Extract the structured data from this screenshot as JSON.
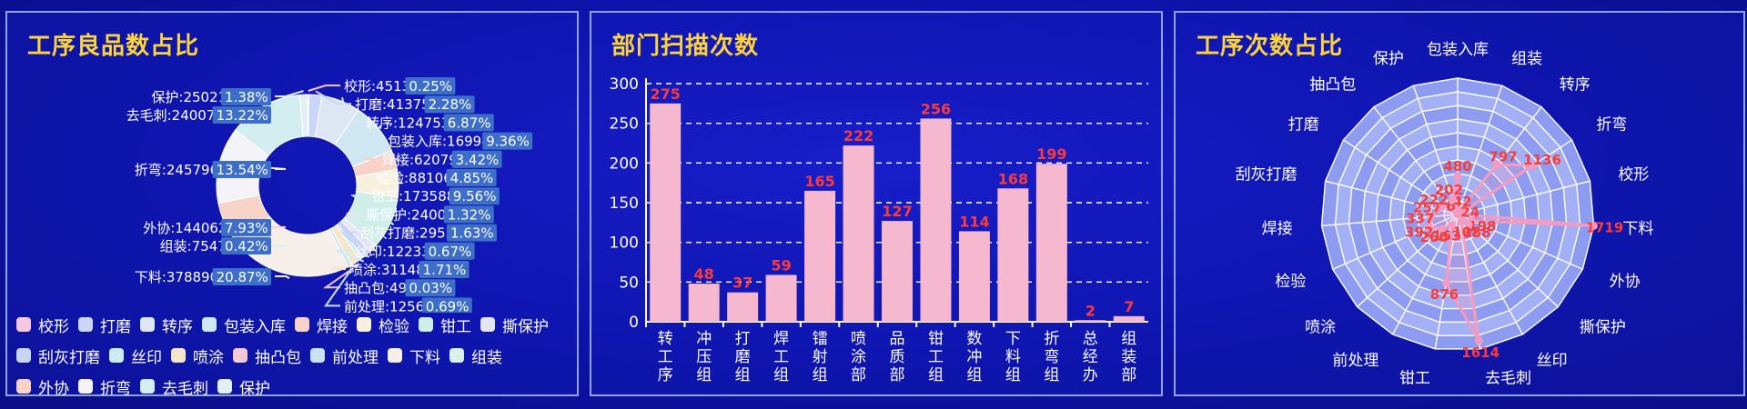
{
  "panels": {
    "good_ratio_title": "工序良品数占比",
    "dept_scan_title": "部门扫描次数",
    "process_count_title": "工序次数占比"
  },
  "chart_data": [
    {
      "type": "pie",
      "title": "工序良品数占比",
      "slices": [
        {
          "name": "校形",
          "value": 4513,
          "percent": "0.25%",
          "color": "#f7c6df"
        },
        {
          "name": "打磨",
          "value": 41375,
          "percent": "2.28%",
          "color": "#c9d6f7"
        },
        {
          "name": "转序",
          "value": 124753,
          "percent": "6.87%",
          "color": "#dfe6f3"
        },
        {
          "name": "包装入库",
          "value": 169943,
          "percent": "9.36%",
          "color": "#cfe7f3"
        },
        {
          "name": "焊接",
          "value": 62079,
          "percent": "3.42%",
          "color": "#f8d2c8"
        },
        {
          "name": "检验",
          "value": 88106,
          "percent": "4.85%",
          "color": "#f7f0dc"
        },
        {
          "name": "钳工",
          "value": 173588,
          "percent": "9.56%",
          "color": "#cfeee7"
        },
        {
          "name": "撕保护",
          "value": 24001,
          "percent": "1.32%",
          "color": "#e3e6f2"
        },
        {
          "name": "刮灰打磨",
          "value": 29552,
          "percent": "1.63%",
          "color": "#c7d4f4"
        },
        {
          "name": "丝印",
          "value": 12233,
          "percent": "0.67%",
          "color": "#cdebf1"
        },
        {
          "name": "喷涂",
          "value": 31148,
          "percent": "1.71%",
          "color": "#f6e5c8"
        },
        {
          "name": "抽凸包",
          "value": 497,
          "percent": "0.03%",
          "color": "#f4c9d6"
        },
        {
          "name": "前处理",
          "value": 12568,
          "percent": "0.69%",
          "color": "#cbe1f5"
        },
        {
          "name": "下料",
          "value": 378890,
          "percent": "20.87%",
          "color": "#f5eee9"
        },
        {
          "name": "组装",
          "value": 7547,
          "percent": "0.42%",
          "color": "#d8f1ec"
        },
        {
          "name": "外协",
          "value": 144062,
          "percent": "7.93%",
          "color": "#f8d3c8"
        },
        {
          "name": "折弯",
          "value": 245796,
          "percent": "13.54%",
          "color": "#f4f4f8"
        },
        {
          "name": "去毛刺",
          "value": 240070,
          "percent": "13.22%",
          "color": "#d3eef0"
        },
        {
          "name": "保护",
          "value": 25021,
          "percent": "1.38%",
          "color": "#e2f0f4"
        }
      ]
    },
    {
      "type": "bar",
      "title": "部门扫描次数",
      "categories": [
        "转工序",
        "冲压组",
        "打磨组",
        "焊工组",
        "镭射组",
        "喷涂部",
        "品质部",
        "钳工组",
        "数冲组",
        "下料组",
        "折弯组",
        "总经办",
        "组装部"
      ],
      "values": [
        275,
        48,
        37,
        59,
        165,
        222,
        127,
        256,
        114,
        168,
        199,
        2,
        7
      ],
      "ylim": [
        0,
        300
      ],
      "yticks": [
        0,
        50,
        100,
        150,
        200,
        250,
        300
      ],
      "bar_color": "#f6b8cf",
      "label_color": "#ff3b3b"
    },
    {
      "type": "radar",
      "title": "工序次数占比",
      "axes": [
        "包装入库",
        "组装",
        "转序",
        "折弯",
        "校形",
        "下料",
        "外协",
        "撕保护",
        "丝印",
        "去毛刺",
        "钳工",
        "前处理",
        "喷涂",
        "检验",
        "焊接",
        "刮灰打磨",
        "打磨",
        "抽凸包",
        "保护"
      ],
      "values": [
        480,
        42,
        797,
        1136,
        24,
        1719,
        198,
        188,
        102,
        1614,
        876,
        153,
        266,
        392,
        337,
        257,
        222,
        6,
        202
      ],
      "max": 1719,
      "line_color": "#f59bbf",
      "label_color": "#ff3b3b"
    }
  ]
}
